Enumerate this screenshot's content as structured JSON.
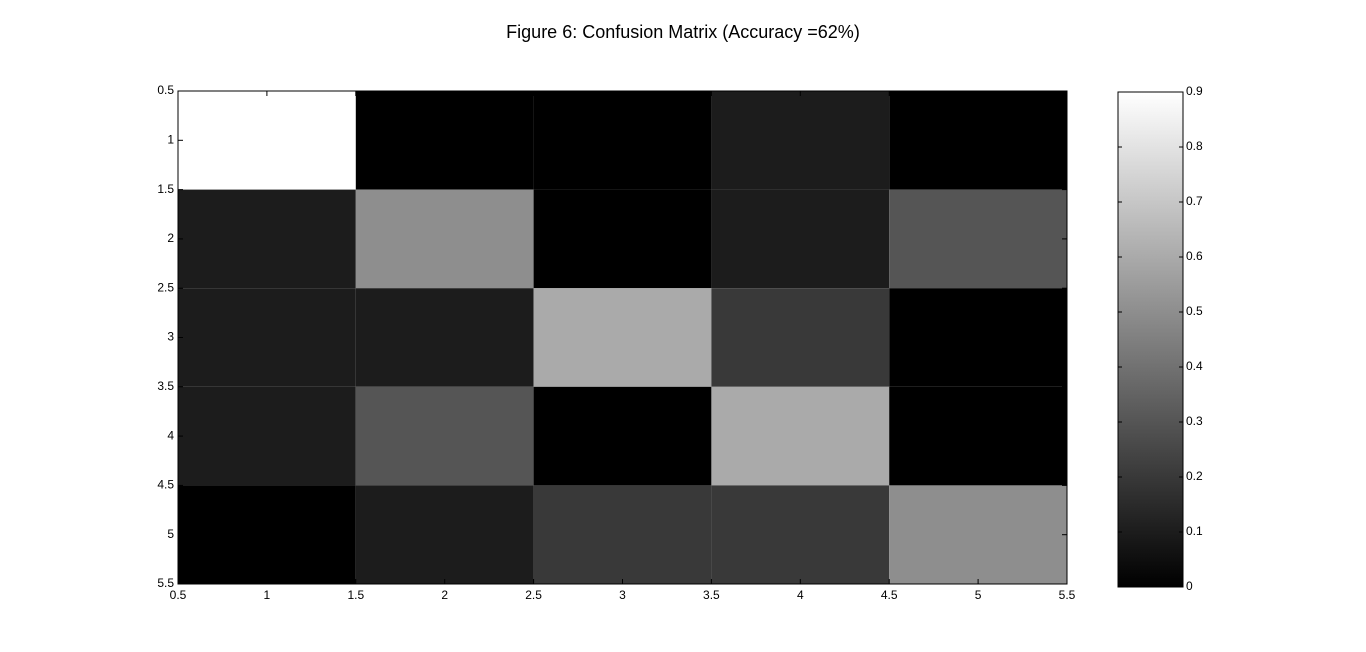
{
  "chart_data": {
    "type": "heatmap",
    "title": "Figure 6: Confusion Matrix (Accuracy =62%)",
    "x": [
      1,
      2,
      3,
      4,
      5
    ],
    "y": [
      1,
      2,
      3,
      4,
      5
    ],
    "z": [
      [
        0.9,
        0,
        0,
        0.1,
        0
      ],
      [
        0.1,
        0.5,
        0,
        0.1,
        0.3
      ],
      [
        0.1,
        0.1,
        0.6,
        0.2,
        0
      ],
      [
        0.1,
        0.3,
        0,
        0.6,
        0
      ],
      [
        0,
        0.1,
        0.2,
        0.2,
        0.5
      ]
    ],
    "colormap": "gray",
    "xlim": [
      0.5,
      5.5
    ],
    "xticks": [
      0.5,
      1,
      1.5,
      2,
      2.5,
      3,
      3.5,
      4,
      4.5,
      5,
      5.5
    ],
    "ylim": [
      0.5,
      5.5
    ],
    "yticks": [
      0.5,
      1,
      1.5,
      2,
      2.5,
      3,
      3.5,
      4,
      4.5,
      5,
      5.5
    ],
    "y_reversed": true,
    "clim": [
      0,
      0.9
    ],
    "cticks": [
      0,
      0.1,
      0.2,
      0.3,
      0.4,
      0.5,
      0.6,
      0.7,
      0.8,
      0.9
    ]
  }
}
